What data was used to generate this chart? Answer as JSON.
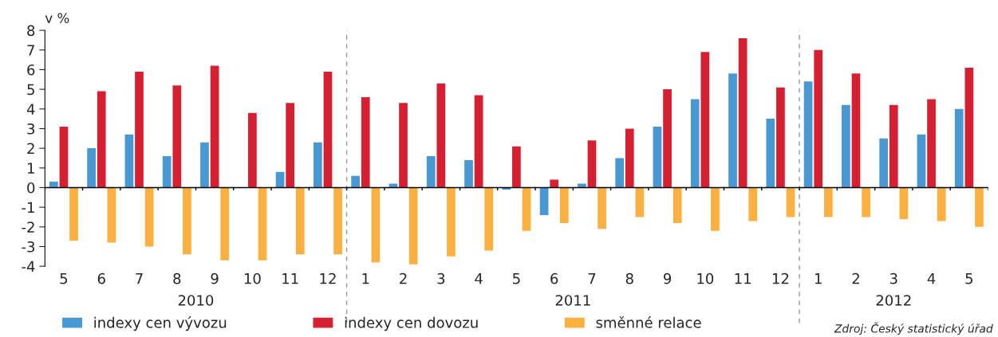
{
  "chart_data": {
    "type": "bar",
    "ylabel": "v %",
    "categories": [
      "5",
      "6",
      "7",
      "8",
      "9",
      "10",
      "11",
      "12",
      "1",
      "2",
      "3",
      "4",
      "5",
      "6",
      "7",
      "8",
      "9",
      "10",
      "11",
      "12",
      "1",
      "2",
      "3",
      "4",
      "5"
    ],
    "series": [
      {
        "name": "indexy cen vývozu",
        "color": "#4898d3",
        "values": [
          0.3,
          2.0,
          2.7,
          1.6,
          2.3,
          0.0,
          0.8,
          2.3,
          0.6,
          0.2,
          1.6,
          1.4,
          -0.1,
          -1.4,
          0.2,
          1.5,
          3.1,
          4.5,
          5.8,
          3.5,
          5.4,
          4.2,
          2.5,
          2.7,
          4.0
        ]
      },
      {
        "name": "indexy cen dovozu",
        "color": "#d71f32",
        "values": [
          3.1,
          4.9,
          5.9,
          5.2,
          6.2,
          3.8,
          4.3,
          5.9,
          4.6,
          4.3,
          5.3,
          4.7,
          2.1,
          0.4,
          2.4,
          3.0,
          5.0,
          6.9,
          7.6,
          5.1,
          7.0,
          5.8,
          4.2,
          4.5,
          6.1
        ]
      },
      {
        "name": "směnné relace",
        "color": "#fbb040",
        "values": [
          -2.7,
          -2.8,
          -3.0,
          -3.4,
          -3.7,
          -3.7,
          -3.4,
          -3.4,
          -3.8,
          -3.9,
          -3.5,
          -3.2,
          -2.2,
          -1.8,
          -2.1,
          -1.5,
          -1.8,
          -2.2,
          -1.7,
          -1.5,
          -1.5,
          -1.5,
          -1.6,
          -1.7,
          -2.0
        ]
      }
    ],
    "ylim": [
      -4,
      8
    ],
    "yticks": [
      -4,
      -3,
      -2,
      -1,
      0,
      1,
      2,
      3,
      4,
      5,
      6,
      7,
      8
    ],
    "annotations": [
      "2010",
      "2011",
      "2012",
      "Zdroj: Český statistický úřad"
    ],
    "legend": "bottom",
    "grid": false
  }
}
